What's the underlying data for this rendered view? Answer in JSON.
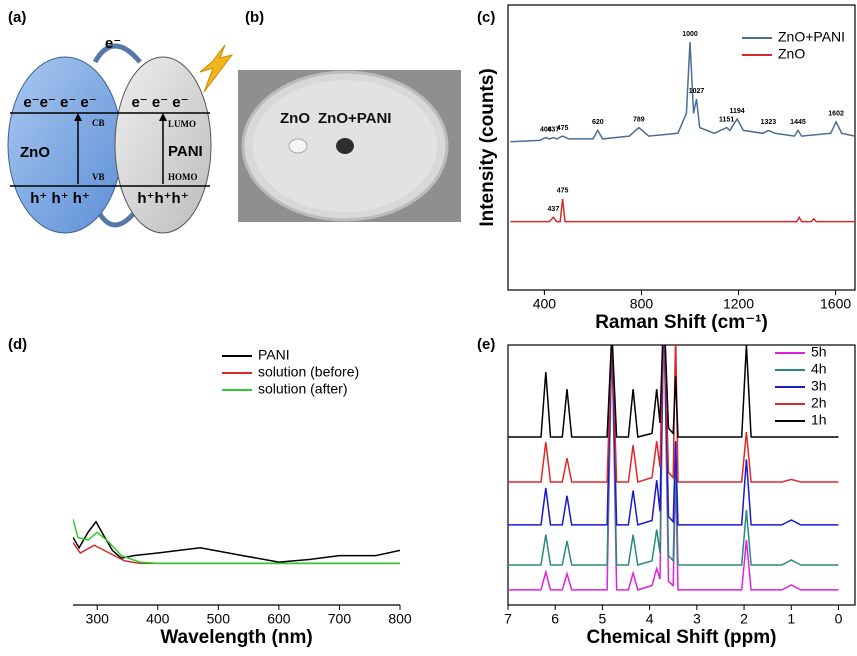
{
  "panel_labels": [
    "(a)",
    "(b)",
    "(c)",
    "(d)",
    "(e)"
  ],
  "diagram": {
    "transfer": "e⁻",
    "zno": {
      "electrons": "e⁻e⁻ e⁻ e⁻",
      "band_top": "CB",
      "name": "ZnO",
      "band_bottom": "VB",
      "holes": "h⁺ h⁺ h⁺"
    },
    "pani": {
      "electrons": "e⁻ e⁻ e⁻",
      "band_top": "LUMO",
      "name": "PANI",
      "band_bottom": "HOMO",
      "holes": "h⁺h⁺h⁺"
    }
  },
  "photo": {
    "labels": [
      "ZnO",
      "ZnO+PANI"
    ]
  },
  "chart_data": [
    {
      "type": "line",
      "x_label": "Raman Shift (cm⁻¹)",
      "y_label": "Intensity (counts)",
      "frame": true,
      "xlim": [
        250,
        1680
      ],
      "xticks": [
        400,
        800,
        1200,
        1600
      ],
      "ylim": [
        0,
        100
      ],
      "legend": "upper right",
      "series": [
        {
          "name": "ZnO+PANI",
          "color": "#4a6f96",
          "x": [
            260,
            380,
            406,
            420,
            437,
            450,
            475,
            500,
            600,
            620,
            640,
            750,
            789,
            830,
            950,
            985,
            1000,
            1015,
            1027,
            1040,
            1100,
            1151,
            1165,
            1194,
            1220,
            1300,
            1323,
            1350,
            1430,
            1445,
            1460,
            1580,
            1602,
            1625,
            1680
          ],
          "values": [
            52,
            52.5,
            53.5,
            53,
            53.5,
            53,
            54,
            53,
            53,
            56,
            53,
            54,
            57,
            54,
            55,
            62,
            87,
            62,
            67,
            57,
            55,
            57,
            56,
            60,
            56,
            55,
            56,
            55,
            54,
            56,
            54,
            55,
            59,
            55,
            54
          ],
          "peak_labels": [
            406,
            437,
            475,
            620,
            789,
            1000,
            1027,
            1151,
            1194,
            1323,
            1445,
            1602
          ]
        },
        {
          "name": "ZnO",
          "color": "#d42a2a",
          "x": [
            260,
            420,
            437,
            450,
            465,
            475,
            485,
            700,
            1440,
            1450,
            1460,
            1500,
            1510,
            1520,
            1680
          ],
          "values": [
            24,
            24,
            25.5,
            24,
            24,
            32,
            24,
            24,
            24,
            25.5,
            24,
            24,
            25,
            24,
            24
          ],
          "peak_labels": [
            437,
            475
          ]
        }
      ]
    },
    {
      "type": "line",
      "x_label": "Wavelength (nm)",
      "frame": false,
      "xlim": [
        260,
        800
      ],
      "xticks": [
        300,
        400,
        500,
        600,
        700,
        800
      ],
      "ylim": [
        0,
        100
      ],
      "legend": "upper center",
      "series": [
        {
          "name": "PANI",
          "color": "#000000",
          "x": [
            260,
            270,
            285,
            298,
            310,
            325,
            340,
            360,
            400,
            470,
            540,
            600,
            650,
            700,
            760,
            800
          ],
          "values": [
            26,
            22,
            28,
            32,
            27,
            21,
            18,
            19,
            20,
            22,
            19,
            16.5,
            17.5,
            19,
            19,
            21
          ]
        },
        {
          "name": "solution (before)",
          "color": "#d42a2a",
          "x": [
            260,
            272,
            295,
            320,
            345,
            370,
            400,
            800
          ],
          "values": [
            24,
            20,
            23,
            20,
            17,
            16,
            16,
            16
          ]
        },
        {
          "name": "solution (after)",
          "color": "#2ecc2e",
          "x": [
            260,
            268,
            285,
            300,
            320,
            340,
            370,
            400,
            800
          ],
          "values": [
            33,
            26,
            25,
            28,
            24,
            19,
            16.5,
            16,
            16
          ]
        }
      ]
    },
    {
      "type": "line",
      "x_label": "Chemical Shift (ppm)",
      "frame": true,
      "xlim": [
        7,
        -0.35
      ],
      "xticks": [
        7,
        6,
        5,
        4,
        3,
        2,
        1,
        0
      ],
      "ylim": [
        0,
        100
      ],
      "legend": "upper right",
      "x": [
        7,
        6.3,
        6.2,
        6.1,
        5.85,
        5.75,
        5.65,
        4.9,
        4.8,
        4.7,
        4.45,
        4.35,
        4.25,
        3.95,
        3.85,
        3.78,
        3.7,
        3.6,
        3.5,
        3.45,
        3.4,
        2.05,
        1.95,
        1.85,
        1.2,
        1.0,
        0.8,
        0
      ],
      "series": [
        {
          "name": "5h",
          "color": "#e020e0",
          "values": [
            5.8,
            5.8,
            12.7,
            5.8,
            5.8,
            12,
            5.8,
            5.8,
            105,
            5.8,
            5.8,
            12.3,
            5.8,
            7.5,
            14,
            10,
            115,
            9,
            7.5,
            51,
            5.8,
            5.8,
            25,
            5.8,
            5.8,
            7.7,
            5.8,
            5.8
          ]
        },
        {
          "name": "4h",
          "color": "#2a8a7a",
          "values": [
            15.4,
            15.4,
            27,
            15.4,
            15.4,
            24.6,
            15.4,
            15.4,
            105,
            15.4,
            15.4,
            27,
            15.4,
            17,
            29,
            20,
            115,
            19,
            17,
            56,
            15.4,
            15.4,
            36.5,
            15.4,
            15.4,
            17.3,
            15.4,
            15.4
          ]
        },
        {
          "name": "3h",
          "color": "#1a1ad0",
          "values": [
            30.8,
            30.8,
            45,
            30.8,
            30.8,
            42,
            30.8,
            30.8,
            105,
            30.8,
            30.8,
            44,
            30.8,
            32.5,
            48,
            36,
            115,
            34,
            32,
            63,
            30.8,
            30.8,
            56,
            30.8,
            30.8,
            32.7,
            30.8,
            30.8
          ]
        },
        {
          "name": "2h",
          "color": "#e02828",
          "values": [
            47.3,
            47.3,
            62.7,
            47.3,
            47.3,
            56.5,
            47.3,
            47.3,
            105,
            47.3,
            47.3,
            61.5,
            47.3,
            49,
            63,
            53,
            115,
            51,
            49,
            105,
            47.3,
            47.3,
            66.5,
            47.3,
            47.3,
            48.3,
            47.3,
            47.3
          ]
        },
        {
          "name": "1h",
          "color": "#000000",
          "values": [
            64.6,
            64.6,
            89.6,
            64.6,
            64.6,
            83,
            64.6,
            64.6,
            105,
            64.6,
            64.6,
            83,
            64.6,
            66,
            83,
            70,
            115,
            68,
            66,
            88,
            64.6,
            64.6,
            100,
            64.6,
            64.6,
            64.6,
            64.6,
            64.6
          ]
        }
      ]
    }
  ]
}
